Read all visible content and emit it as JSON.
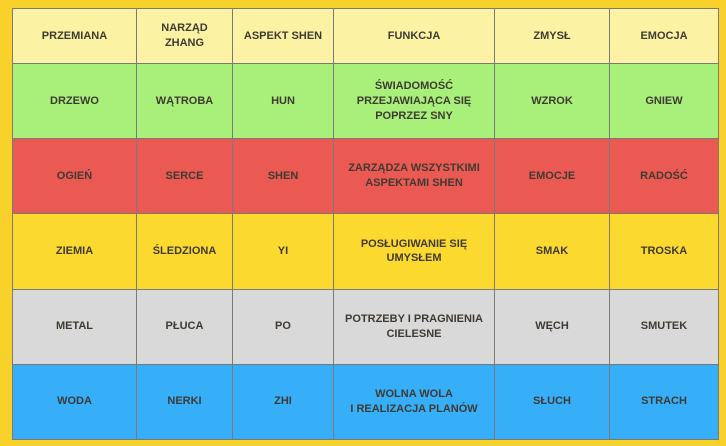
{
  "table": {
    "headers": [
      "PRZEMIANA",
      "NARZĄD\nZHANG",
      "ASPEKT SHEN",
      "FUNKCJA",
      "ZMYSŁ",
      "EMOCJA"
    ],
    "rows": [
      {
        "color": "#a9f07a",
        "cells": [
          "DRZEWO",
          "WĄTROBA",
          "HUN",
          "ŚWIADOMOŚĆ\nPRZEJAWIAJĄCA SIĘ\nPOPRZEZ SNY",
          "WZROK",
          "GNIEW"
        ]
      },
      {
        "color": "#eb5a52",
        "cells": [
          "OGIEŃ",
          "SERCE",
          "SHEN",
          "ZARZĄDZA WSZYSTKIMI\nASPEKTAMI SHEN",
          "EMOCJE",
          "RADOŚĆ"
        ]
      },
      {
        "color": "#fcd92e",
        "cells": [
          "ZIEMIA",
          "ŚLEDZIONA",
          "YI",
          "POSŁUGIWANIE SIĘ\nUMYSŁEM",
          "SMAK",
          "TROSKA"
        ]
      },
      {
        "color": "#d9d9d9",
        "cells": [
          "METAL",
          "PŁUCA",
          "PO",
          "POTRZEBY I PRAGNIENIA\nCIELESNE",
          "WĘCH",
          "SMUTEK"
        ]
      },
      {
        "color": "#36aef8",
        "cells": [
          "WODA",
          "NERKI",
          "ZHI",
          "WOLNA WOLA\nI REALIZACJA PLANÓW",
          "SŁUCH",
          "STRACH"
        ]
      }
    ]
  }
}
